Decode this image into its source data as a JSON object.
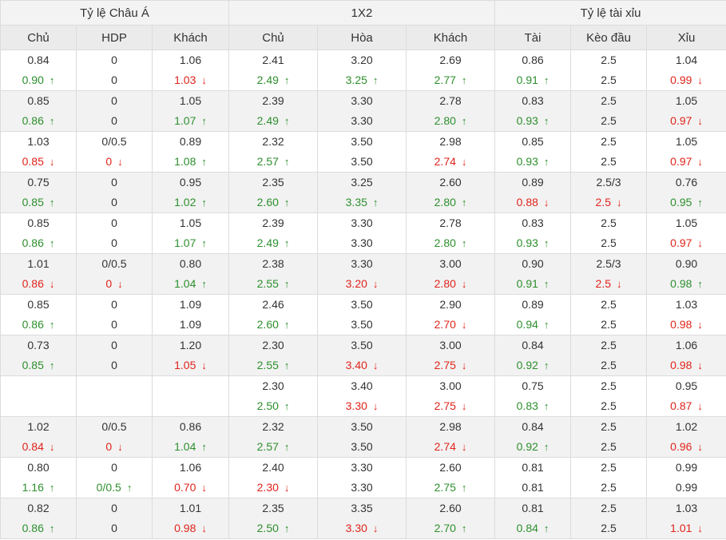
{
  "headers": {
    "groups": [
      "Tỷ lệ Châu Á",
      "1X2",
      "Tỷ lệ tài xỉu"
    ],
    "columns": [
      "Chủ",
      "HDP",
      "Khách",
      "Chủ",
      "Hòa",
      "Khách",
      "Tài",
      "Kèo đầu",
      "Xỉu"
    ]
  },
  "colors": {
    "up": "#2d8f2d",
    "down": "#e0241b",
    "text": "#333333",
    "border": "#dcdcdc",
    "header_bg": "#f3f3f3"
  },
  "icons": {
    "up": "arrow-up-icon",
    "down": "arrow-down-icon"
  },
  "rows": [
    {
      "top": [
        "0.84",
        "0",
        "1.06",
        "2.41",
        "3.20",
        "2.69",
        "0.86",
        "2.5",
        "1.04"
      ],
      "bottom": [
        [
          "0.90",
          "up"
        ],
        [
          "0",
          ""
        ],
        [
          "1.03",
          "down"
        ],
        [
          "2.49",
          "up"
        ],
        [
          "3.25",
          "up"
        ],
        [
          "2.77",
          "up"
        ],
        [
          "0.91",
          "up"
        ],
        [
          "2.5",
          ""
        ],
        [
          "0.99",
          "down"
        ]
      ]
    },
    {
      "top": [
        "0.85",
        "0",
        "1.05",
        "2.39",
        "3.30",
        "2.78",
        "0.83",
        "2.5",
        "1.05"
      ],
      "bottom": [
        [
          "0.86",
          "up"
        ],
        [
          "0",
          ""
        ],
        [
          "1.07",
          "up"
        ],
        [
          "2.49",
          "up"
        ],
        [
          "3.30",
          ""
        ],
        [
          "2.80",
          "up"
        ],
        [
          "0.93",
          "up"
        ],
        [
          "2.5",
          ""
        ],
        [
          "0.97",
          "down"
        ]
      ]
    },
    {
      "top": [
        "1.03",
        "0/0.5",
        "0.89",
        "2.32",
        "3.50",
        "2.98",
        "0.85",
        "2.5",
        "1.05"
      ],
      "bottom": [
        [
          "0.85",
          "down"
        ],
        [
          "0",
          "down"
        ],
        [
          "1.08",
          "up"
        ],
        [
          "2.57",
          "up"
        ],
        [
          "3.50",
          ""
        ],
        [
          "2.74",
          "down"
        ],
        [
          "0.93",
          "up"
        ],
        [
          "2.5",
          ""
        ],
        [
          "0.97",
          "down"
        ]
      ]
    },
    {
      "top": [
        "0.75",
        "0",
        "0.95",
        "2.35",
        "3.25",
        "2.60",
        "0.89",
        "2.5/3",
        "0.76"
      ],
      "bottom": [
        [
          "0.85",
          "up"
        ],
        [
          "0",
          ""
        ],
        [
          "1.02",
          "up"
        ],
        [
          "2.60",
          "up"
        ],
        [
          "3.35",
          "up"
        ],
        [
          "2.80",
          "up"
        ],
        [
          "0.88",
          "down"
        ],
        [
          "2.5",
          "down"
        ],
        [
          "0.95",
          "up"
        ]
      ]
    },
    {
      "top": [
        "0.85",
        "0",
        "1.05",
        "2.39",
        "3.30",
        "2.78",
        "0.83",
        "2.5",
        "1.05"
      ],
      "bottom": [
        [
          "0.86",
          "up"
        ],
        [
          "0",
          ""
        ],
        [
          "1.07",
          "up"
        ],
        [
          "2.49",
          "up"
        ],
        [
          "3.30",
          ""
        ],
        [
          "2.80",
          "up"
        ],
        [
          "0.93",
          "up"
        ],
        [
          "2.5",
          ""
        ],
        [
          "0.97",
          "down"
        ]
      ]
    },
    {
      "top": [
        "1.01",
        "0/0.5",
        "0.80",
        "2.38",
        "3.30",
        "3.00",
        "0.90",
        "2.5/3",
        "0.90"
      ],
      "bottom": [
        [
          "0.86",
          "down"
        ],
        [
          "0",
          "down"
        ],
        [
          "1.04",
          "up"
        ],
        [
          "2.55",
          "up"
        ],
        [
          "3.20",
          "down"
        ],
        [
          "2.80",
          "down"
        ],
        [
          "0.91",
          "up"
        ],
        [
          "2.5",
          "down"
        ],
        [
          "0.98",
          "up"
        ]
      ]
    },
    {
      "top": [
        "0.85",
        "0",
        "1.09",
        "2.46",
        "3.50",
        "2.90",
        "0.89",
        "2.5",
        "1.03"
      ],
      "bottom": [
        [
          "0.86",
          "up"
        ],
        [
          "0",
          ""
        ],
        [
          "1.09",
          ""
        ],
        [
          "2.60",
          "up"
        ],
        [
          "3.50",
          ""
        ],
        [
          "2.70",
          "down"
        ],
        [
          "0.94",
          "up"
        ],
        [
          "2.5",
          ""
        ],
        [
          "0.98",
          "down"
        ]
      ]
    },
    {
      "top": [
        "0.73",
        "0",
        "1.20",
        "2.30",
        "3.50",
        "3.00",
        "0.84",
        "2.5",
        "1.06"
      ],
      "bottom": [
        [
          "0.85",
          "up"
        ],
        [
          "0",
          ""
        ],
        [
          "1.05",
          "down"
        ],
        [
          "2.55",
          "up"
        ],
        [
          "3.40",
          "down"
        ],
        [
          "2.75",
          "down"
        ],
        [
          "0.92",
          "up"
        ],
        [
          "2.5",
          ""
        ],
        [
          "0.98",
          "down"
        ]
      ]
    },
    {
      "top": [
        "",
        "",
        "",
        "2.30",
        "3.40",
        "3.00",
        "0.75",
        "2.5",
        "0.95"
      ],
      "bottom": [
        [
          "",
          ""
        ],
        [
          "",
          ""
        ],
        [
          "",
          ""
        ],
        [
          "2.50",
          "up"
        ],
        [
          "3.30",
          "down"
        ],
        [
          "2.75",
          "down"
        ],
        [
          "0.83",
          "up"
        ],
        [
          "2.5",
          ""
        ],
        [
          "0.87",
          "down"
        ]
      ]
    },
    {
      "top": [
        "1.02",
        "0/0.5",
        "0.86",
        "2.32",
        "3.50",
        "2.98",
        "0.84",
        "2.5",
        "1.02"
      ],
      "bottom": [
        [
          "0.84",
          "down"
        ],
        [
          "0",
          "down"
        ],
        [
          "1.04",
          "up"
        ],
        [
          "2.57",
          "up"
        ],
        [
          "3.50",
          ""
        ],
        [
          "2.74",
          "down"
        ],
        [
          "0.92",
          "up"
        ],
        [
          "2.5",
          ""
        ],
        [
          "0.96",
          "down"
        ]
      ]
    },
    {
      "top": [
        "0.80",
        "0",
        "1.06",
        "2.40",
        "3.30",
        "2.60",
        "0.81",
        "2.5",
        "0.99"
      ],
      "bottom": [
        [
          "1.16",
          "up"
        ],
        [
          "0/0.5",
          "up"
        ],
        [
          "0.70",
          "down"
        ],
        [
          "2.30",
          "down"
        ],
        [
          "3.30",
          ""
        ],
        [
          "2.75",
          "up"
        ],
        [
          "0.81",
          ""
        ],
        [
          "2.5",
          ""
        ],
        [
          "0.99",
          ""
        ]
      ]
    },
    {
      "top": [
        "0.82",
        "0",
        "1.01",
        "2.35",
        "3.35",
        "2.60",
        "0.81",
        "2.5",
        "1.03"
      ],
      "bottom": [
        [
          "0.86",
          "up"
        ],
        [
          "0",
          ""
        ],
        [
          "0.98",
          "down"
        ],
        [
          "2.50",
          "up"
        ],
        [
          "3.30",
          "down"
        ],
        [
          "2.70",
          "up"
        ],
        [
          "0.84",
          "up"
        ],
        [
          "2.5",
          ""
        ],
        [
          "1.01",
          "down"
        ]
      ]
    }
  ]
}
